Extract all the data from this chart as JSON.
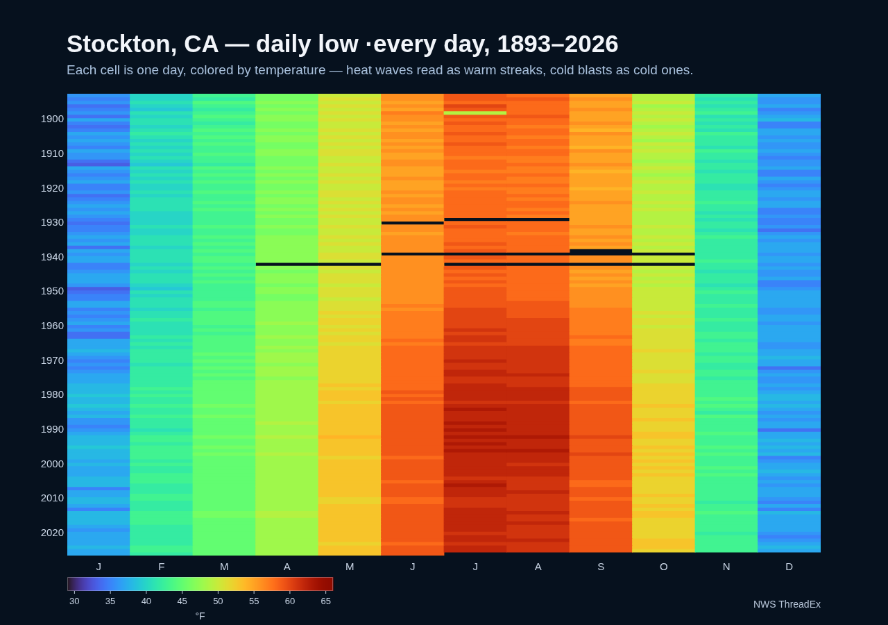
{
  "chart_data": {
    "type": "heatmap",
    "title": "Stockton, CA — daily low ·every day, 1893–2026",
    "subtitle": "Each cell is one day, colored by temperature — heat waves read as warm streaks, cold blasts as cold ones.",
    "clabel": "°F",
    "annotations": [
      "NWS ThreadEx"
    ],
    "categories": [
      "J",
      "F",
      "M",
      "A",
      "M",
      "J",
      "J",
      "A",
      "S",
      "O",
      "N",
      "D"
    ],
    "y_categories": [
      null,
      null,
      null,
      null,
      null,
      null,
      null,
      "1900",
      null,
      null,
      null,
      null,
      null,
      null,
      null,
      null,
      null,
      "1910",
      null,
      null,
      null,
      null,
      null,
      null,
      null,
      null,
      null,
      "1920",
      null,
      null,
      null,
      null,
      null,
      null,
      null,
      null,
      null,
      "1930",
      null,
      null,
      null,
      null,
      null,
      null,
      null,
      null,
      null,
      "1940",
      null,
      null,
      null,
      null,
      null,
      null,
      null,
      null,
      null,
      "1950",
      null,
      null,
      null,
      null,
      null,
      null,
      null,
      null,
      null,
      "1960",
      null,
      null,
      null,
      null,
      null,
      null,
      null,
      null,
      null,
      "1970",
      null,
      null,
      null,
      null,
      null,
      null,
      null,
      null,
      null,
      "1980",
      null,
      null,
      null,
      null,
      null,
      null,
      null,
      null,
      null,
      "1990",
      null,
      null,
      null,
      null,
      null,
      null,
      null,
      null,
      null,
      "2000",
      null,
      null,
      null,
      null,
      null,
      null,
      null,
      null,
      null,
      "2010",
      null,
      null,
      null,
      null,
      null,
      null,
      null,
      null,
      null,
      "2020",
      null,
      null,
      null,
      null,
      null,
      null
    ],
    "clim": [
      29,
      66
    ],
    "cticks": [
      30,
      35,
      40,
      45,
      50,
      55,
      60,
      65
    ],
    "cells": [
      [
        36,
        40,
        43,
        46,
        50,
        56,
        59,
        58,
        55,
        49,
        42,
        37
      ],
      [
        35,
        40,
        42,
        46,
        51,
        56,
        59,
        59,
        56,
        49,
        41,
        36
      ],
      [
        36,
        41,
        44,
        47,
        50,
        55,
        58,
        58,
        55,
        50,
        42,
        36
      ],
      [
        34,
        40,
        43,
        46,
        51,
        56,
        60,
        58,
        55,
        48,
        41,
        37
      ],
      [
        35,
        39,
        42,
        47,
        50,
        55,
        59,
        58,
        56,
        49,
        42,
        35
      ],
      [
        36,
        41,
        43,
        46,
        51,
        57,
        49,
        58,
        55,
        50,
        43,
        36
      ],
      [
        34,
        40,
        44,
        47,
        50,
        56,
        59,
        59,
        55,
        49,
        41,
        37
      ],
      [
        37,
        41,
        43,
        47,
        51,
        56,
        58,
        58,
        55,
        50,
        42,
        38
      ],
      [
        35,
        41,
        42,
        46,
        50,
        55,
        59,
        58,
        56,
        49,
        41,
        35
      ],
      [
        34,
        40,
        43,
        46,
        50,
        56,
        58,
        57,
        55,
        48,
        42,
        35
      ],
      [
        35,
        41,
        44,
        47,
        51,
        55,
        58,
        58,
        54,
        49,
        41,
        37
      ],
      [
        37,
        42,
        43,
        46,
        50,
        56,
        59,
        58,
        56,
        50,
        43,
        37
      ],
      [
        36,
        41,
        44,
        47,
        51,
        56,
        58,
        57,
        55,
        49,
        42,
        36
      ],
      [
        37,
        40,
        43,
        47,
        50,
        55,
        58,
        58,
        55,
        48,
        42,
        37
      ],
      [
        36,
        41,
        44,
        46,
        51,
        56,
        59,
        58,
        55,
        50,
        42,
        36
      ],
      [
        35,
        40,
        43,
        46,
        50,
        55,
        58,
        57,
        54,
        49,
        41,
        36
      ],
      [
        37,
        41,
        43,
        47,
        51,
        56,
        58,
        58,
        56,
        50,
        43,
        37
      ],
      [
        36,
        40,
        44,
        47,
        51,
        55,
        58,
        58,
        55,
        49,
        42,
        36
      ],
      [
        36,
        41,
        43,
        46,
        50,
        55,
        57,
        57,
        55,
        49,
        42,
        35
      ],
      [
        34,
        40,
        43,
        46,
        50,
        56,
        58,
        57,
        55,
        48,
        41,
        36
      ],
      [
        33,
        39,
        42,
        46,
        51,
        56,
        58,
        58,
        56,
        49,
        42,
        36
      ],
      [
        37,
        41,
        44,
        47,
        50,
        55,
        58,
        57,
        55,
        50,
        42,
        37
      ],
      [
        36,
        40,
        43,
        46,
        50,
        55,
        57,
        57,
        54,
        49,
        41,
        35
      ],
      [
        35,
        41,
        44,
        47,
        51,
        55,
        58,
        58,
        55,
        48,
        42,
        35
      ],
      [
        36,
        40,
        43,
        46,
        50,
        56,
        58,
        57,
        55,
        49,
        42,
        37
      ],
      [
        37,
        41,
        44,
        47,
        51,
        55,
        57,
        57,
        55,
        50,
        42,
        36
      ],
      [
        35,
        40,
        43,
        46,
        50,
        55,
        58,
        58,
        55,
        49,
        41,
        35
      ],
      [
        35,
        40,
        43,
        46,
        50,
        55,
        57,
        57,
        54,
        49,
        41,
        36
      ],
      [
        36,
        41,
        44,
        47,
        51,
        56,
        58,
        57,
        55,
        50,
        42,
        37
      ],
      [
        34,
        40,
        43,
        46,
        51,
        55,
        58,
        58,
        55,
        49,
        42,
        37
      ],
      [
        35,
        41,
        43,
        47,
        50,
        56,
        58,
        57,
        55,
        49,
        42,
        36
      ],
      [
        36,
        41,
        44,
        47,
        51,
        56,
        58,
        58,
        56,
        50,
        43,
        37
      ],
      [
        37,
        41,
        43,
        46,
        50,
        55,
        58,
        58,
        55,
        49,
        42,
        37
      ],
      [
        36,
        41,
        44,
        47,
        51,
        56,
        58,
        57,
        55,
        50,
        42,
        35
      ],
      [
        37,
        40,
        43,
        46,
        50,
        55,
        58,
        58,
        55,
        49,
        41,
        35
      ],
      [
        36,
        40,
        43,
        47,
        51,
        56,
        58,
        57,
        55,
        49,
        42,
        36
      ],
      [
        35,
        40,
        43,
        46,
        50,
        56,
        null,
        null,
        55,
        49,
        41,
        35
      ],
      [
        34,
        40,
        43,
        46,
        50,
        null,
        58,
        58,
        55,
        49,
        42,
        35
      ],
      [
        35,
        41,
        44,
        47,
        51,
        56,
        59,
        58,
        56,
        50,
        42,
        36
      ],
      [
        35,
        40,
        43,
        46,
        50,
        56,
        58,
        58,
        55,
        49,
        41,
        34
      ],
      [
        36,
        40,
        43,
        46,
        50,
        55,
        58,
        57,
        55,
        49,
        42,
        36
      ],
      [
        37,
        41,
        44,
        47,
        51,
        56,
        58,
        58,
        56,
        50,
        43,
        37
      ],
      [
        36,
        41,
        43,
        47,
        50,
        56,
        58,
        58,
        55,
        49,
        42,
        36
      ],
      [
        37,
        41,
        44,
        47,
        51,
        56,
        59,
        58,
        56,
        50,
        42,
        37
      ],
      [
        34,
        40,
        43,
        47,
        50,
        56,
        58,
        58,
        55,
        49,
        42,
        37
      ],
      [
        37,
        41,
        44,
        47,
        50,
        56,
        59,
        58,
        null,
        50,
        42,
        37
      ],
      [
        36,
        41,
        43,
        47,
        51,
        null,
        null,
        null,
        null,
        null,
        42,
        36
      ],
      [
        37,
        41,
        44,
        47,
        51,
        56,
        59,
        58,
        56,
        50,
        42,
        37
      ],
      [
        37,
        41,
        44,
        47,
        50,
        56,
        58,
        58,
        56,
        50,
        43,
        37
      ],
      [
        35,
        40,
        43,
        null,
        null,
        56,
        null,
        null,
        null,
        null,
        42,
        36
      ],
      [
        35,
        41,
        44,
        47,
        51,
        56,
        59,
        58,
        56,
        50,
        42,
        37
      ],
      [
        36,
        40,
        43,
        46,
        50,
        56,
        58,
        58,
        55,
        49,
        41,
        36
      ],
      [
        37,
        41,
        44,
        47,
        51,
        56,
        59,
        58,
        56,
        50,
        42,
        36
      ],
      [
        37,
        41,
        43,
        47,
        51,
        56,
        58,
        58,
        55,
        49,
        42,
        37
      ],
      [
        37,
        41,
        44,
        47,
        51,
        56,
        59,
        58,
        56,
        50,
        42,
        35
      ],
      [
        36,
        40,
        43,
        46,
        50,
        56,
        58,
        58,
        55,
        49,
        41,
        35
      ],
      [
        33,
        39,
        43,
        47,
        51,
        56,
        59,
        58,
        56,
        50,
        42,
        36
      ],
      [
        34,
        41,
        43,
        47,
        51,
        56,
        59,
        58,
        56,
        50,
        43,
        37
      ],
      [
        35,
        40,
        43,
        46,
        51,
        56,
        59,
        58,
        56,
        50,
        42,
        37
      ],
      [
        35,
        41,
        43,
        46,
        50,
        56,
        59,
        58,
        56,
        50,
        42,
        37
      ],
      [
        37,
        41,
        44,
        47,
        51,
        56,
        59,
        59,
        56,
        50,
        42,
        37
      ],
      [
        37,
        41,
        44,
        47,
        51,
        57,
        59,
        59,
        56,
        50,
        43,
        37
      ],
      [
        35,
        40,
        43,
        47,
        51,
        56,
        60,
        59,
        57,
        50,
        42,
        36
      ],
      [
        36,
        41,
        44,
        47,
        52,
        57,
        60,
        59,
        57,
        51,
        42,
        36
      ],
      [
        35,
        41,
        44,
        47,
        51,
        57,
        60,
        59,
        57,
        50,
        42,
        37
      ],
      [
        36,
        42,
        44,
        47,
        52,
        57,
        60,
        60,
        57,
        51,
        43,
        37
      ],
      [
        37,
        41,
        44,
        48,
        52,
        57,
        60,
        60,
        57,
        51,
        42,
        36
      ],
      [
        35,
        41,
        43,
        47,
        51,
        57,
        60,
        60,
        57,
        50,
        42,
        37
      ],
      [
        36,
        41,
        44,
        47,
        52,
        57,
        61,
        60,
        57,
        51,
        42,
        37
      ],
      [
        34,
        41,
        43,
        47,
        51,
        57,
        60,
        60,
        57,
        51,
        43,
        37
      ],
      [
        34,
        42,
        44,
        48,
        52,
        57,
        61,
        60,
        58,
        51,
        43,
        37
      ],
      [
        37,
        41,
        44,
        47,
        52,
        58,
        61,
        60,
        57,
        51,
        42,
        37
      ],
      [
        37,
        42,
        44,
        47,
        51,
        57,
        60,
        60,
        57,
        51,
        43,
        36
      ],
      [
        37,
        41,
        44,
        48,
        52,
        58,
        61,
        61,
        58,
        51,
        43,
        36
      ],
      [
        38,
        42,
        44,
        47,
        52,
        58,
        61,
        61,
        58,
        52,
        43,
        37
      ],
      [
        37,
        42,
        45,
        48,
        52,
        58,
        61,
        61,
        58,
        51,
        42,
        37
      ],
      [
        36,
        42,
        44,
        48,
        52,
        58,
        61,
        61,
        58,
        51,
        43,
        38
      ],
      [
        35,
        42,
        45,
        48,
        52,
        58,
        62,
        61,
        58,
        51,
        43,
        37
      ],
      [
        36,
        41,
        44,
        47,
        52,
        58,
        61,
        61,
        58,
        51,
        42,
        37
      ],
      [
        35,
        42,
        45,
        48,
        52,
        58,
        61,
        61,
        58,
        51,
        42,
        34
      ],
      [
        36,
        42,
        44,
        48,
        52,
        58,
        62,
        61,
        58,
        52,
        43,
        36
      ],
      [
        37,
        42,
        45,
        48,
        52,
        58,
        62,
        62,
        58,
        51,
        43,
        37
      ],
      [
        37,
        42,
        44,
        47,
        52,
        58,
        61,
        61,
        58,
        51,
        42,
        36
      ],
      [
        37,
        42,
        45,
        48,
        52,
        58,
        61,
        61,
        58,
        51,
        43,
        36
      ],
      [
        38,
        42,
        45,
        48,
        53,
        58,
        62,
        61,
        58,
        52,
        43,
        37
      ],
      [
        38,
        43,
        45,
        48,
        52,
        58,
        62,
        62,
        59,
        52,
        43,
        36
      ],
      [
        38,
        42,
        45,
        48,
        53,
        59,
        62,
        62,
        59,
        52,
        43,
        37
      ],
      [
        39,
        43,
        45,
        48,
        53,
        58,
        62,
        62,
        59,
        52,
        43,
        38
      ],
      [
        38,
        42,
        45,
        48,
        53,
        59,
        62,
        62,
        59,
        52,
        44,
        38
      ],
      [
        38,
        42,
        45,
        48,
        52,
        58,
        61,
        61,
        58,
        52,
        43,
        37
      ],
      [
        39,
        43,
        46,
        48,
        53,
        59,
        62,
        62,
        59,
        53,
        44,
        38
      ],
      [
        38,
        42,
        45,
        48,
        53,
        59,
        63,
        62,
        59,
        52,
        43,
        37
      ],
      [
        37,
        42,
        45,
        48,
        53,
        59,
        62,
        62,
        59,
        52,
        42,
        36
      ],
      [
        38,
        43,
        46,
        48,
        53,
        59,
        62,
        62,
        59,
        52,
        44,
        37
      ],
      [
        36,
        42,
        45,
        48,
        53,
        59,
        62,
        62,
        59,
        53,
        43,
        36
      ],
      [
        36,
        42,
        45,
        49,
        53,
        59,
        63,
        62,
        59,
        52,
        43,
        37
      ],
      [
        35,
        42,
        45,
        48,
        53,
        59,
        62,
        62,
        59,
        52,
        43,
        37
      ],
      [
        36,
        41,
        45,
        48,
        53,
        59,
        63,
        62,
        59,
        52,
        43,
        34
      ],
      [
        37,
        42,
        45,
        48,
        53,
        59,
        62,
        62,
        59,
        53,
        44,
        37
      ],
      [
        38,
        43,
        46,
        49,
        54,
        59,
        63,
        63,
        60,
        53,
        43,
        37
      ],
      [
        38,
        43,
        45,
        48,
        53,
        59,
        62,
        62,
        59,
        52,
        43,
        38
      ],
      [
        38,
        42,
        45,
        48,
        53,
        59,
        63,
        62,
        59,
        52,
        43,
        37
      ],
      [
        39,
        43,
        46,
        48,
        53,
        59,
        62,
        62,
        59,
        53,
        44,
        38
      ],
      [
        38,
        43,
        45,
        48,
        53,
        59,
        63,
        63,
        59,
        52,
        43,
        37
      ],
      [
        38,
        43,
        46,
        49,
        53,
        59,
        62,
        62,
        60,
        53,
        44,
        38
      ],
      [
        38,
        43,
        45,
        48,
        52,
        58,
        62,
        62,
        59,
        52,
        43,
        35
      ],
      [
        37,
        42,
        45,
        48,
        53,
        59,
        62,
        62,
        59,
        53,
        43,
        36
      ],
      [
        38,
        43,
        45,
        48,
        53,
        59,
        62,
        61,
        59,
        52,
        43,
        37
      ],
      [
        37,
        42,
        45,
        48,
        53,
        59,
        62,
        62,
        59,
        53,
        44,
        37
      ],
      [
        37,
        42,
        45,
        48,
        53,
        59,
        62,
        62,
        59,
        52,
        43,
        38
      ],
      [
        37,
        43,
        45,
        48,
        53,
        59,
        62,
        62,
        59,
        53,
        44,
        37
      ],
      [
        38,
        43,
        45,
        48,
        53,
        59,
        61,
        61,
        59,
        52,
        43,
        36
      ],
      [
        38,
        43,
        45,
        48,
        53,
        58,
        62,
        61,
        58,
        52,
        43,
        37
      ],
      [
        38,
        42,
        45,
        48,
        53,
        59,
        63,
        61,
        58,
        52,
        43,
        36
      ],
      [
        35,
        42,
        45,
        48,
        53,
        59,
        62,
        61,
        59,
        52,
        43,
        37
      ],
      [
        37,
        42,
        45,
        48,
        53,
        59,
        62,
        62,
        59,
        52,
        43,
        37
      ],
      [
        37,
        43,
        45,
        48,
        53,
        59,
        62,
        61,
        59,
        53,
        43,
        37
      ],
      [
        38,
        43,
        45,
        48,
        52,
        58,
        61,
        61,
        58,
        52,
        43,
        36
      ],
      [
        38,
        42,
        45,
        48,
        52,
        58,
        61,
        61,
        59,
        52,
        42,
        35
      ],
      [
        37,
        42,
        45,
        48,
        53,
        59,
        61,
        61,
        59,
        53,
        43,
        37
      ],
      [
        35,
        42,
        45,
        48,
        53,
        59,
        62,
        61,
        59,
        52,
        43,
        35
      ],
      [
        38,
        43,
        46,
        49,
        53,
        59,
        62,
        62,
        59,
        53,
        44,
        38
      ],
      [
        38,
        43,
        46,
        49,
        53,
        59,
        62,
        61,
        59,
        53,
        43,
        37
      ],
      [
        38,
        43,
        45,
        48,
        53,
        59,
        62,
        61,
        58,
        52,
        43,
        37
      ],
      [
        38,
        43,
        45,
        48,
        53,
        59,
        62,
        62,
        59,
        52,
        43,
        37
      ],
      [
        37,
        42,
        45,
        48,
        53,
        59,
        62,
        61,
        59,
        52,
        43,
        37
      ],
      [
        36,
        42,
        45,
        48,
        53,
        59,
        62,
        61,
        59,
        52,
        43,
        37
      ],
      [
        37,
        42,
        45,
        48,
        53,
        59,
        61,
        61,
        59,
        52,
        42,
        36
      ],
      [
        37,
        42,
        45,
        48,
        53,
        59,
        62,
        61,
        59,
        52,
        43,
        35
      ],
      [
        37,
        42,
        45,
        48,
        53,
        59,
        62,
        62,
        59,
        53,
        43,
        36
      ],
      [
        37,
        42,
        45,
        48,
        52,
        58,
        61,
        61,
        59,
        53,
        43,
        37
      ],
      [
        38,
        43,
        45,
        48,
        53,
        59,
        62,
        61,
        59,
        53,
        43,
        38
      ],
      [
        37,
        43,
        45,
        48,
        53,
        59,
        62,
        61,
        59,
        52,
        43,
        37
      ],
      [
        37,
        42,
        45,
        48,
        53,
        59,
        null,
        null,
        null,
        null,
        null,
        null
      ]
    ]
  }
}
